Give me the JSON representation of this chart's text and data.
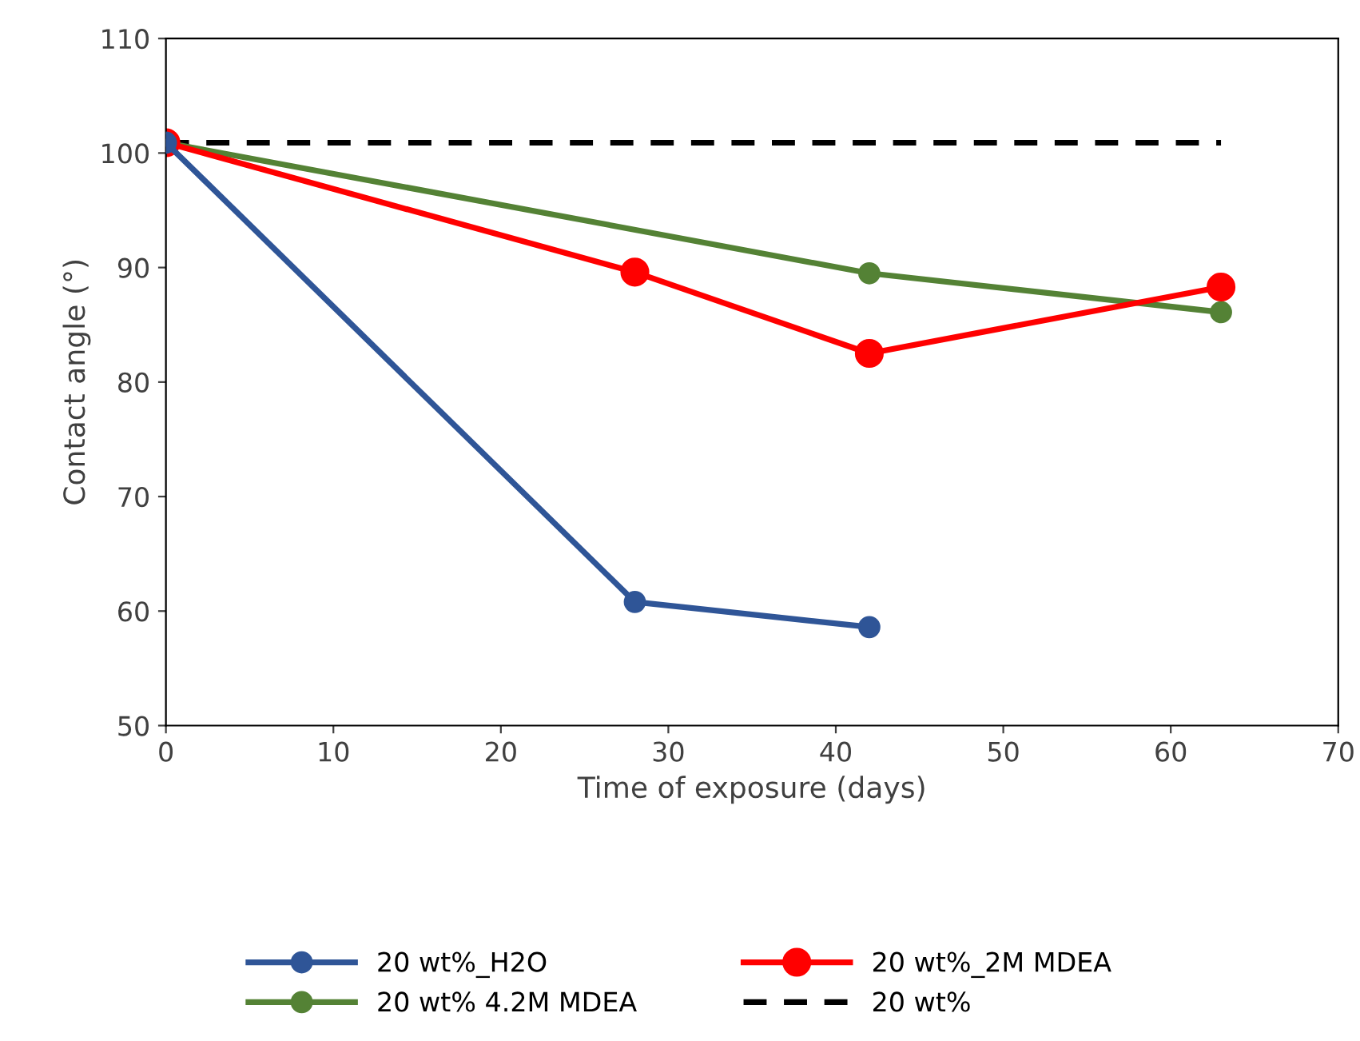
{
  "chart_data": {
    "type": "line",
    "xlabel": "Time of exposure (days)",
    "ylabel": "Contact angle (°)",
    "xlim": [
      0,
      70
    ],
    "xticks": [
      0,
      10,
      20,
      30,
      40,
      50,
      60,
      70
    ],
    "ylim": [
      50,
      110
    ],
    "yticks": [
      50,
      60,
      70,
      80,
      90,
      100,
      110
    ],
    "grid": false,
    "legend": "bottom",
    "series": [
      {
        "name": "20 wt%_H2O",
        "color": "#2f5597",
        "x": [
          0,
          28,
          42
        ],
        "values": [
          100.9,
          60.8,
          58.6
        ],
        "marker": "circle",
        "line_style": "solid"
      },
      {
        "name": "20 wt%_2M MDEA",
        "color": "#ff0000",
        "x": [
          0,
          28,
          42,
          63
        ],
        "values": [
          100.9,
          89.6,
          82.5,
          88.3
        ],
        "marker": "circle",
        "line_style": "solid"
      },
      {
        "name": "20 wt% 4.2M MDEA",
        "color": "#548235",
        "x": [
          0,
          42,
          63
        ],
        "values": [
          100.9,
          89.5,
          86.1
        ],
        "marker": "circle",
        "line_style": "solid"
      },
      {
        "name": "20 wt%",
        "color": "#000000",
        "x": [
          0,
          63
        ],
        "values": [
          100.9,
          100.9
        ],
        "marker": "none",
        "line_style": "dashed"
      }
    ]
  }
}
